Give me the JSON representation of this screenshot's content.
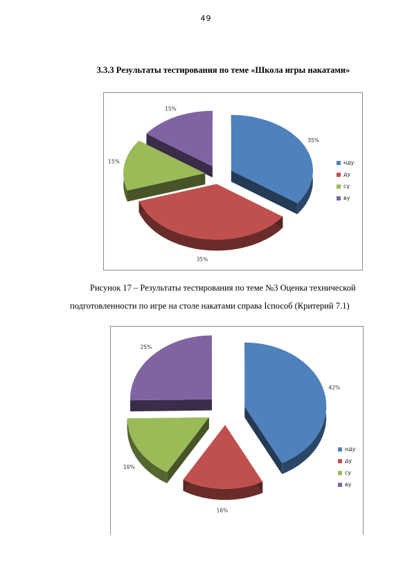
{
  "page_number": "49",
  "section_heading": "3.3.3 Результаты тестирования по теме «Школа игры накатами»",
  "figure1": {
    "caption_line1": "Рисунок 17 – Результаты тестирования по теме №3 Оценка технической",
    "caption_line2": "подготовленности по игре на столе накатами справа Iспособ (Критерий 7.1)"
  },
  "legend": [
    "нду",
    "ду",
    "су",
    "ву"
  ],
  "colors": {
    "нду": "#4f81bd",
    "ду": "#c0504d",
    "су": "#9bbb59",
    "ву": "#8064a2"
  },
  "chart_data": [
    {
      "type": "pie",
      "categories": [
        "нду",
        "ду",
        "су",
        "ву"
      ],
      "values": [
        35,
        35,
        15,
        15
      ],
      "labels": [
        "35%",
        "35%",
        "15%",
        "15%"
      ],
      "legend_position": "right",
      "exploded": true,
      "style": "3d"
    },
    {
      "type": "pie",
      "categories": [
        "нду",
        "ду",
        "су",
        "ву"
      ],
      "values": [
        42,
        16,
        16,
        25
      ],
      "labels": [
        "42%",
        "16%",
        "16%",
        "25%"
      ],
      "legend_position": "right",
      "exploded": true,
      "style": "3d"
    }
  ]
}
